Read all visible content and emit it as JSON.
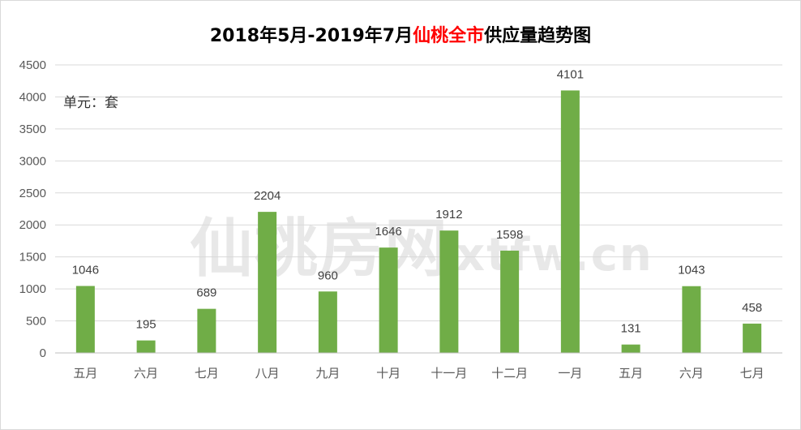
{
  "title": {
    "part1": "2018年5月-2019年7月",
    "highlight": "仙桃全市",
    "part2": "供应量趋势图"
  },
  "unit_label": "单元：套",
  "watermark": {
    "cn": "仙桃房网",
    "en": "xtfw.cn"
  },
  "colors": {
    "bar": "#70ad47",
    "grid": "#d9d9d9",
    "axis": "#bfbfbf",
    "title_highlight": "#ff0000"
  },
  "chart_data": {
    "type": "bar",
    "title": "2018年5月-2019年7月仙桃全市供应量趋势图",
    "categories": [
      "五月",
      "六月",
      "七月",
      "八月",
      "九月",
      "十月",
      "十一月",
      "十二月",
      "一月",
      "五月",
      "六月",
      "七月"
    ],
    "values": [
      1046,
      195,
      689,
      2204,
      960,
      1646,
      1912,
      1598,
      4101,
      131,
      1043,
      458
    ],
    "ylim": [
      0,
      4500
    ],
    "yticks": [
      0,
      500,
      1000,
      1500,
      2000,
      2500,
      3000,
      3500,
      4000,
      4500
    ],
    "grid": true,
    "data_labels": true,
    "legend": "none"
  }
}
